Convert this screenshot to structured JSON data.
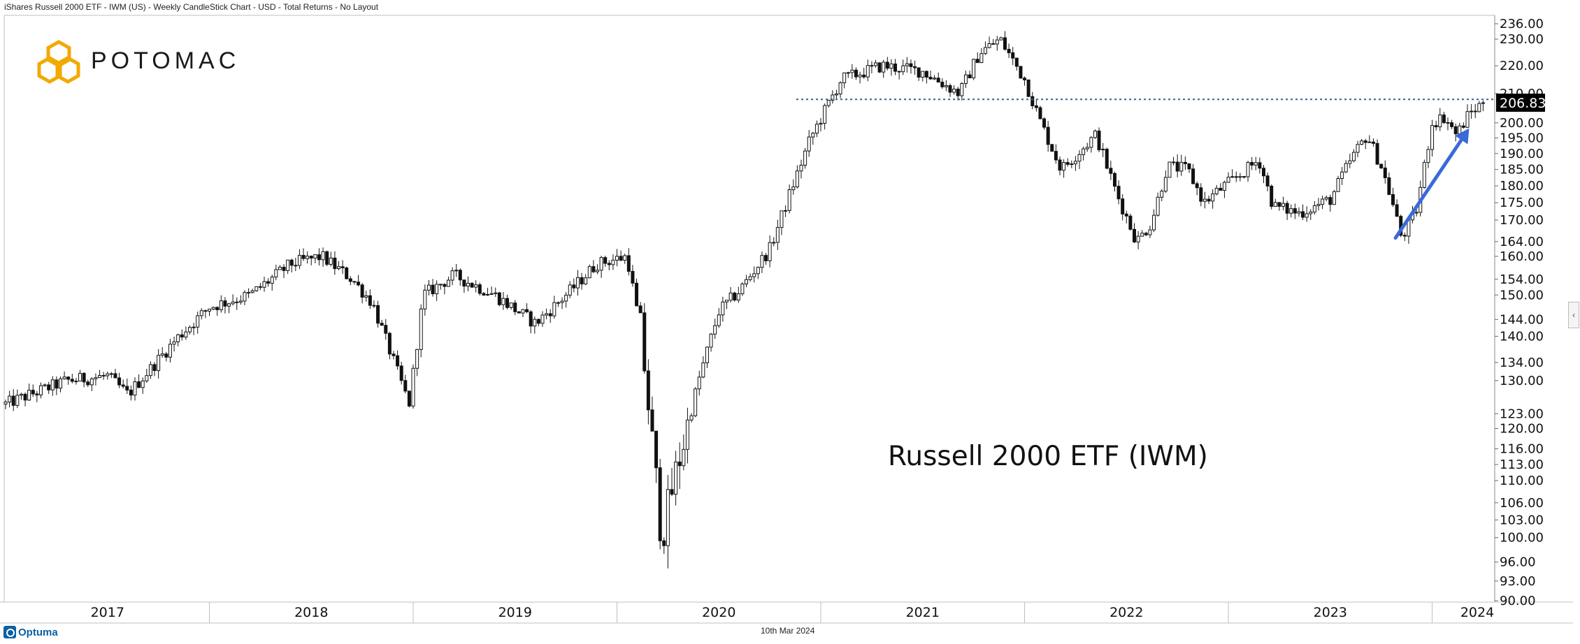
{
  "window": {
    "title": "iShares Russell 2000 ETF - IWM (US) - Weekly CandleStick Chart - USD - Total Returns - No Layout",
    "footer_date": "10th Mar 2024",
    "optuma_label": "Optuma",
    "collapse_icon": "chevron-left-icon",
    "collapse_glyph": "‹"
  },
  "brand": {
    "name": "POTOMAC",
    "color": "#F2A900"
  },
  "chart_data": {
    "type": "candlestick",
    "title": "Russell 2000 ETF (IWM)",
    "interval": "Weekly",
    "currency": "USD",
    "y_scale": "log",
    "ylim": [
      90,
      236
    ],
    "y_ticks": [
      236,
      230,
      220,
      210,
      200,
      195,
      190,
      185,
      180,
      175,
      170,
      164,
      160,
      154,
      150,
      144,
      140,
      134,
      130,
      123,
      120,
      116,
      113,
      110,
      106,
      103,
      100,
      96,
      93,
      90
    ],
    "y_tick_labels": [
      "236.00",
      "230.00",
      "220.00",
      "210.00",
      "200.00",
      "195.00",
      "190.00",
      "185.00",
      "180.00",
      "175.00",
      "170.00",
      "164.00",
      "160.00",
      "154.00",
      "150.00",
      "144.00",
      "140.00",
      "134.00",
      "130.00",
      "123.00",
      "120.00",
      "116.00",
      "113.00",
      "110.00",
      "106.00",
      "103.00",
      "100.00",
      "96.00",
      "93.00",
      "90.00"
    ],
    "x_labels": [
      "2017",
      "2018",
      "2019",
      "2020",
      "2021",
      "2022",
      "2023",
      "2024"
    ],
    "xlim": [
      2017.0,
      2024.3
    ],
    "last_price": 206.83,
    "last_price_label": "206.83",
    "reference_line": {
      "value": 208,
      "x_start": 2020.88,
      "style": "dotted",
      "color": "#3a5a9a"
    },
    "arrow": {
      "from": [
        2023.82,
        165
      ],
      "to": [
        2024.17,
        197
      ],
      "color": "#3a6ad8"
    },
    "anchors": [
      [
        2017.0,
        125
      ],
      [
        2017.3,
        130
      ],
      [
        2017.5,
        131
      ],
      [
        2017.6,
        127
      ],
      [
        2017.85,
        140
      ],
      [
        2018.0,
        147
      ],
      [
        2018.2,
        150
      ],
      [
        2018.4,
        158
      ],
      [
        2018.55,
        160
      ],
      [
        2018.7,
        154
      ],
      [
        2018.8,
        148
      ],
      [
        2018.98,
        125
      ],
      [
        2019.05,
        150
      ],
      [
        2019.2,
        155
      ],
      [
        2019.4,
        150
      ],
      [
        2019.6,
        143
      ],
      [
        2019.75,
        150
      ],
      [
        2019.9,
        158
      ],
      [
        2020.05,
        160
      ],
      [
        2020.12,
        140
      ],
      [
        2020.22,
        100
      ],
      [
        2020.28,
        110
      ],
      [
        2020.4,
        130
      ],
      [
        2020.5,
        146
      ],
      [
        2020.6,
        151
      ],
      [
        2020.75,
        162
      ],
      [
        2020.85,
        178
      ],
      [
        2020.95,
        195
      ],
      [
        2021.1,
        215
      ],
      [
        2021.3,
        220
      ],
      [
        2021.5,
        218
      ],
      [
        2021.68,
        210
      ],
      [
        2021.78,
        225
      ],
      [
        2021.88,
        230
      ],
      [
        2022.0,
        215
      ],
      [
        2022.08,
        200
      ],
      [
        2022.18,
        185
      ],
      [
        2022.35,
        196
      ],
      [
        2022.45,
        178
      ],
      [
        2022.55,
        164
      ],
      [
        2022.62,
        169
      ],
      [
        2022.7,
        186
      ],
      [
        2022.8,
        185
      ],
      [
        2022.88,
        175
      ],
      [
        2022.98,
        180
      ],
      [
        2023.03,
        182
      ],
      [
        2023.15,
        188
      ],
      [
        2023.22,
        174
      ],
      [
        2023.35,
        172
      ],
      [
        2023.5,
        176
      ],
      [
        2023.6,
        188
      ],
      [
        2023.68,
        196
      ],
      [
        2023.75,
        186
      ],
      [
        2023.8,
        176
      ],
      [
        2023.85,
        165
      ],
      [
        2023.92,
        172
      ],
      [
        2024.0,
        200
      ],
      [
        2024.06,
        202
      ],
      [
        2024.12,
        196
      ],
      [
        2024.18,
        203
      ],
      [
        2024.25,
        206.83
      ]
    ]
  }
}
